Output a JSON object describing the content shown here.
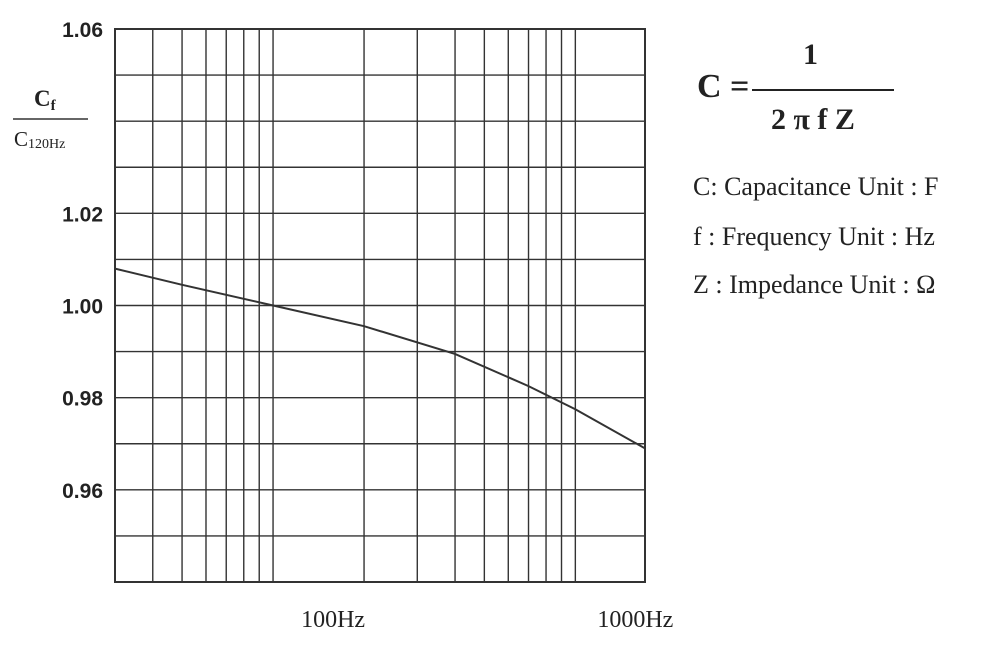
{
  "chart_data": {
    "type": "line",
    "title": "",
    "xlabel": "",
    "ylabel": {
      "numerator_main": "C",
      "numerator_sub": "f",
      "denominator_main": "C",
      "denominator_sub": "120Hz"
    },
    "x_scale": "log",
    "xlim": [
      30,
      1700
    ],
    "ylim": [
      0.94,
      1.06
    ],
    "y_ticks": [
      {
        "value": 1.06,
        "label": "1.06"
      },
      {
        "value": 1.02,
        "label": "1.02"
      },
      {
        "value": 1.0,
        "label": "1.00"
      },
      {
        "value": 0.98,
        "label": "0.98"
      },
      {
        "value": 0.96,
        "label": "0.96"
      }
    ],
    "x_ticks": [
      {
        "value": 100,
        "label": "100Hz"
      },
      {
        "value": 1000,
        "label": "1000Hz"
      }
    ],
    "grid": true,
    "legend": "none",
    "series": [
      {
        "x": [
          30,
          50,
          100,
          200,
          400,
          700,
          1000,
          1700
        ],
        "values": [
          1.008,
          1.0045,
          1.0,
          0.9955,
          0.9895,
          0.9825,
          0.9775,
          0.969
        ]
      }
    ]
  },
  "formula": {
    "lhs": "C =",
    "numerator": "1",
    "denominator": "2 π f Z"
  },
  "definitions": [
    "C: Capacitance Unit : F",
    "f : Frequency Unit : Hz",
    "Z : Impedance Unit : Ω"
  ]
}
